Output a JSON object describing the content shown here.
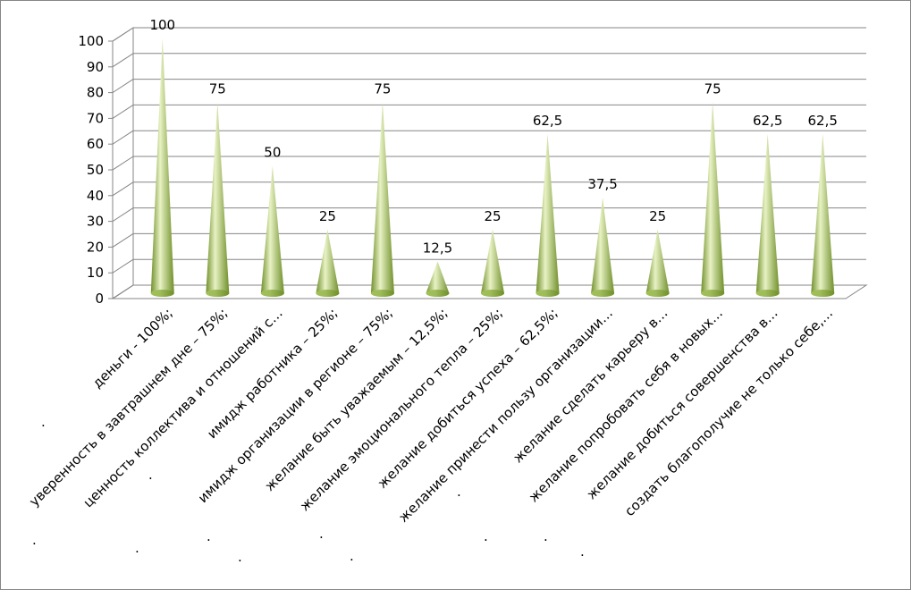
{
  "chart_data": {
    "type": "bar",
    "style": "3d-cone",
    "title": "",
    "xlabel": "",
    "ylabel": "",
    "ylim": [
      0,
      100
    ],
    "yticks": [
      0,
      10,
      20,
      30,
      40,
      50,
      60,
      70,
      80,
      90,
      100
    ],
    "grid": true,
    "legend": "none",
    "categories": [
      "деньги - 100%;",
      "уверенность в завтрашнем дне – 75%;",
      "ценность коллектива и отношений с…",
      "имидж работника – 25%;",
      "имидж организации в регионе – 75%;",
      "желание быть уважаемым – 12,5%;",
      "желание эмоционального тепла – 25%;",
      "желание добиться успеха – 62,5%;",
      "желание принести пользу организации…",
      "желание сделать карьеру в…",
      "желание попробовать себя в новых…",
      "желание добиться совершенства в…",
      "создать благополучие не только себе,…"
    ],
    "values": [
      100,
      75,
      50,
      25,
      75,
      12.5,
      25,
      62.5,
      37.5,
      25,
      75,
      62.5,
      62.5
    ],
    "data_labels": [
      "100",
      "75",
      "50",
      "25",
      "75",
      "12,5",
      "25",
      "62,5",
      "37,5",
      "25",
      "75",
      "62,5",
      "62,5"
    ],
    "category_marker": ".",
    "colors": {
      "cone_light": "#e8f2c4",
      "cone_mid": "#a9c95c",
      "cone_dark": "#6f8f2a",
      "gridline": "#868686"
    }
  }
}
